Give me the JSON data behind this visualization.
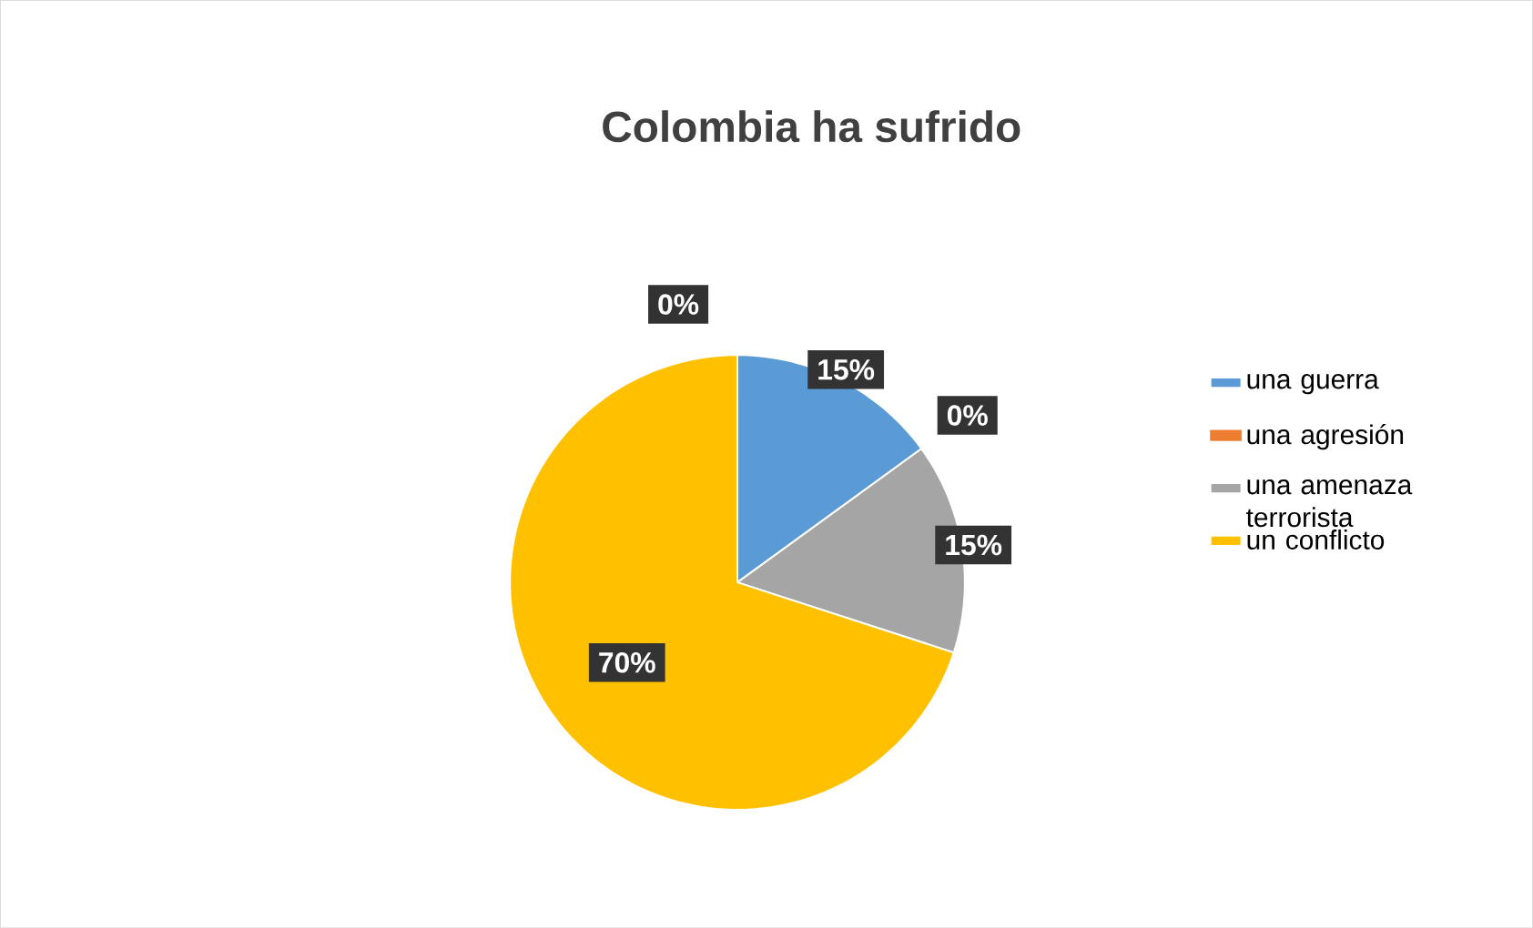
{
  "chart_data": {
    "type": "pie",
    "title": "Colombia ha sufrido",
    "categories": [
      "una guerra",
      "una agresión",
      "una amenaza terrorista",
      "un conflicto",
      null
    ],
    "values": [
      15,
      0,
      15,
      70,
      0
    ],
    "value_labels": [
      "15%",
      "0%",
      "15%",
      "70%",
      "0%"
    ],
    "colors": [
      "#5b9bd5",
      "#ed7d31",
      "#a5a5a5",
      "#ffc000",
      "#4472c4"
    ],
    "legend": "right"
  }
}
